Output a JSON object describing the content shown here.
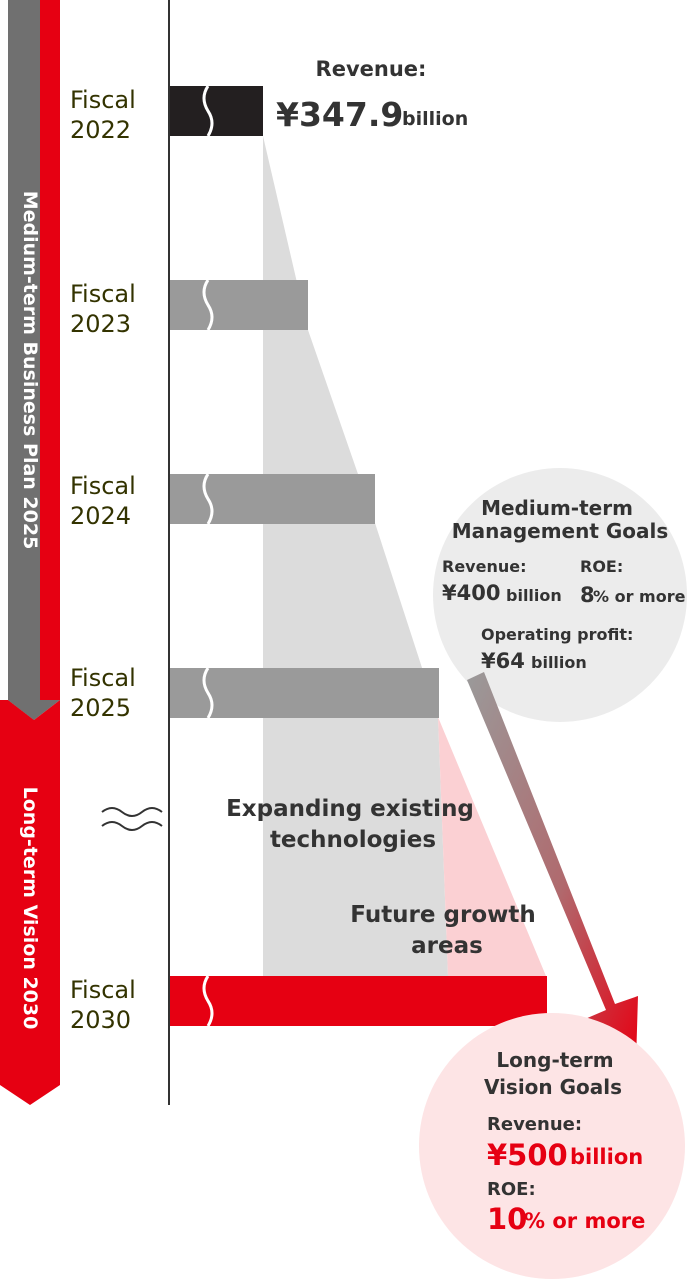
{
  "side_labels": {
    "medium_term": "Medium-term Business Plan 2025",
    "long_term": "Long-term Vision 2030"
  },
  "years": [
    {
      "fiscal": "Fiscal",
      "year": "2022"
    },
    {
      "fiscal": "Fiscal",
      "year": "2023"
    },
    {
      "fiscal": "Fiscal",
      "year": "2024"
    },
    {
      "fiscal": "Fiscal",
      "year": "2025"
    },
    {
      "fiscal": "Fiscal",
      "year": "2030"
    }
  ],
  "top_revenue": {
    "label": "Revenue:",
    "value": "¥347.9",
    "unit": "billion"
  },
  "areas": {
    "existing_line1": "Expanding existing",
    "existing_line2": "technologies",
    "future_line1": "Future growth",
    "future_line2": "areas"
  },
  "medium_goals": {
    "title_line1": "Medium-term",
    "title_line2": "Management Goals",
    "revenue_label": "Revenue:",
    "revenue_value": "¥400",
    "revenue_unit": "billion",
    "roe_label": "ROE:",
    "roe_value": "8",
    "roe_unit": "% or more",
    "op_label": "Operating profit:",
    "op_value": "¥64",
    "op_unit": "billion"
  },
  "long_goals": {
    "title_line1": "Long-term",
    "title_line2": "Vision Goals",
    "revenue_label": "Revenue:",
    "revenue_value": "¥500",
    "revenue_unit": "billion",
    "roe_label": "ROE:",
    "roe_value": "10",
    "roe_unit": "% or more"
  },
  "colors": {
    "red": "#e60012",
    "dark_bar": "#231f20",
    "gray_bar": "#9a9a9a",
    "light_area": "#dcdcdc",
    "pink_area": "#fbd0d3",
    "gray_circle": "#ececec",
    "pink_circle": "#fde4e5"
  }
}
